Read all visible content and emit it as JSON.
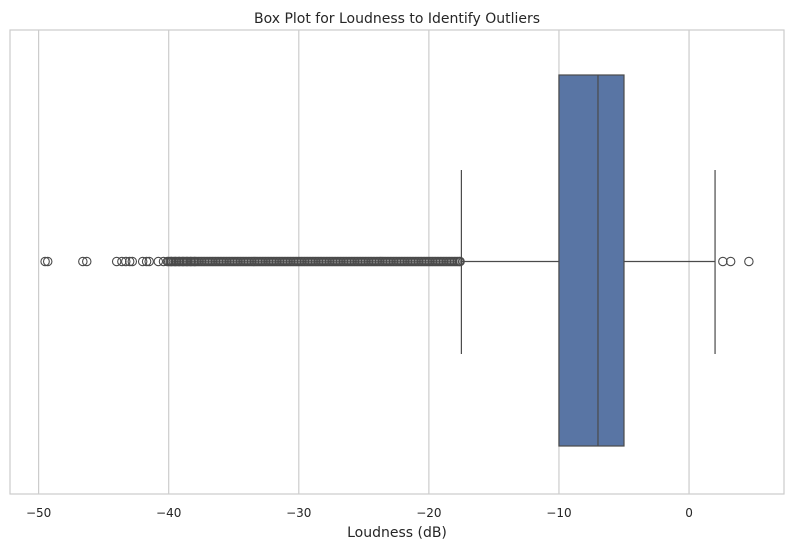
{
  "chart_data": {
    "type": "box",
    "title": "Box Plot for Loudness to Identify Outliers",
    "xlabel": "Loudness (dB)",
    "ylabel": "",
    "orientation": "horizontal",
    "xlim": [
      -52.2,
      7.3
    ],
    "xticks": [
      -50,
      -40,
      -30,
      -20,
      -10,
      0
    ],
    "xtick_labels": [
      "−50",
      "−40",
      "−30",
      "−20",
      "−10",
      "0"
    ],
    "grid": "vertical",
    "box": {
      "whisker_low": -17.5,
      "q1": -10.0,
      "median": -7.0,
      "q3": -5.0,
      "whisker_high": 2.0,
      "color": "#5975a4"
    },
    "outliers_low": [
      -49.5,
      -49.3,
      -46.6,
      -46.3,
      -44.0,
      -43.6,
      -43.3,
      -43.0,
      -42.8,
      -42.0,
      -41.7,
      -41.5,
      -40.8,
      -40.4,
      -40.1,
      -39.8,
      -39.5,
      -39.2,
      -38.9,
      -38.6,
      -38.3,
      -38.0
    ],
    "outliers_low_dense_range": [
      -40.0,
      -17.6
    ],
    "outliers_high": [
      2.6,
      3.2,
      4.6
    ]
  }
}
